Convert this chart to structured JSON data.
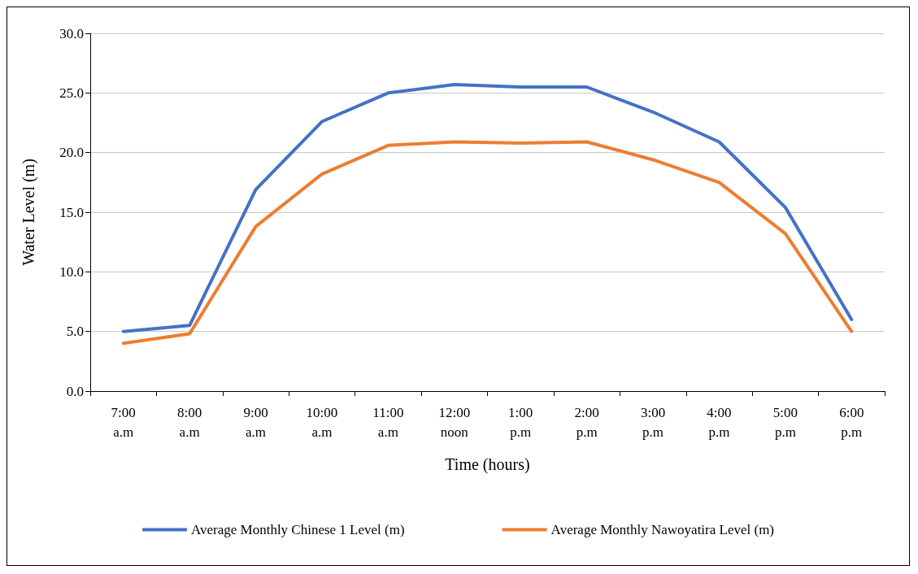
{
  "chart_data": {
    "type": "line",
    "xlabel": "Time (hours)",
    "ylabel": "Water Level (m)",
    "categories": [
      "7:00\na.m",
      "8:00\na.m",
      "9:00\na.m",
      "10:00\na.m",
      "11:00\na.m",
      "12:00\nnoon",
      "1:00\np.m",
      "2:00\np.m",
      "3:00\np.m",
      "4:00\np.m",
      "5:00\np.m",
      "6:00\np.m"
    ],
    "series": [
      {
        "name": "Average Monthly Chinese 1 Level (m)",
        "color": "#4472c4",
        "values": [
          5.0,
          5.5,
          16.9,
          22.6,
          25.0,
          25.7,
          25.5,
          25.5,
          23.4,
          20.9,
          15.4,
          6.0
        ]
      },
      {
        "name": "Average Monthly Nawoyatira Level (m)",
        "color": "#ed7d31",
        "values": [
          4.0,
          4.8,
          13.8,
          18.2,
          20.6,
          20.9,
          20.8,
          20.9,
          19.4,
          17.5,
          13.2,
          5.0
        ]
      }
    ],
    "ylim": [
      0,
      30
    ],
    "yticks": [
      {
        "value": 0,
        "label": "0.0"
      },
      {
        "value": 5,
        "label": "5.0"
      },
      {
        "value": 10,
        "label": "10.0"
      },
      {
        "value": 15,
        "label": "15.0"
      },
      {
        "value": 20,
        "label": "20.0"
      },
      {
        "value": 25,
        "label": "25.0"
      },
      {
        "value": 30,
        "label": "30.0"
      }
    ],
    "grid": "y",
    "legend": "bottom",
    "marker": "none",
    "line_style": "solid"
  }
}
